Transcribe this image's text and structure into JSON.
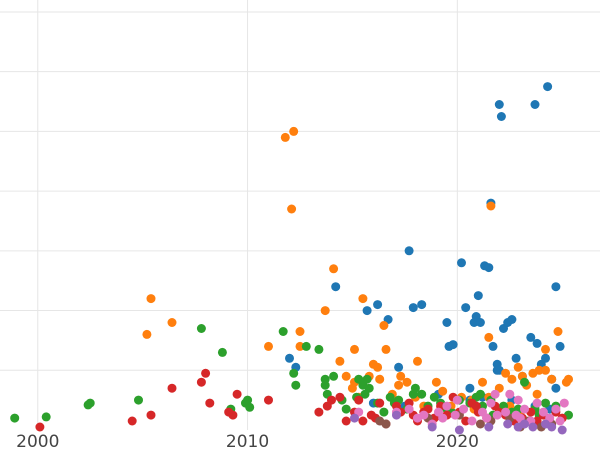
{
  "chart_data": {
    "type": "scatter",
    "title": "",
    "xlabel": "",
    "ylabel": "",
    "xlim": [
      1998.2,
      2026.8
    ],
    "ylim": [
      0,
      7.2
    ],
    "x_ticks": [
      2000,
      2010,
      2020
    ],
    "x_tick_labels": [
      "2000",
      "2010",
      "2020"
    ],
    "y_gridlines": [
      1,
      2,
      3,
      4,
      5,
      6,
      7
    ],
    "grid": true,
    "legend": "none",
    "series": [
      {
        "color": "#1f77b4",
        "points": [
          [
            2014.2,
            2.4
          ],
          [
            2015.7,
            2.0
          ],
          [
            2016.2,
            2.1
          ],
          [
            2016.7,
            1.85
          ],
          [
            2017.2,
            1.05
          ],
          [
            2017.7,
            3.0
          ],
          [
            2017.9,
            2.05
          ],
          [
            2018.3,
            2.1
          ],
          [
            2019.5,
            1.8
          ],
          [
            2019.6,
            1.4
          ],
          [
            2019.8,
            1.43
          ],
          [
            2020.2,
            2.8
          ],
          [
            2020.4,
            2.05
          ],
          [
            2020.6,
            0.7
          ],
          [
            2020.8,
            1.8
          ],
          [
            2020.9,
            1.9
          ],
          [
            2021.0,
            2.25
          ],
          [
            2021.1,
            1.8
          ],
          [
            2021.3,
            2.75
          ],
          [
            2021.5,
            2.72
          ],
          [
            2021.6,
            3.8
          ],
          [
            2021.7,
            1.4
          ],
          [
            2021.9,
            1.1
          ],
          [
            2021.9,
            1.0
          ],
          [
            2022.0,
            1.0
          ],
          [
            2022.0,
            5.45
          ],
          [
            2022.1,
            5.25
          ],
          [
            2022.2,
            1.7
          ],
          [
            2022.4,
            1.8
          ],
          [
            2022.6,
            1.85
          ],
          [
            2022.8,
            1.2
          ],
          [
            2023.1,
            0.9
          ],
          [
            2023.5,
            1.55
          ],
          [
            2023.7,
            5.45
          ],
          [
            2023.8,
            1.45
          ],
          [
            2024.0,
            1.1
          ],
          [
            2024.2,
            1.2
          ],
          [
            2024.3,
            5.75
          ],
          [
            2024.5,
            0.85
          ],
          [
            2024.7,
            0.7
          ],
          [
            2024.7,
            2.4
          ],
          [
            2024.9,
            1.4
          ],
          [
            2012.0,
            1.2
          ],
          [
            2012.3,
            1.05
          ],
          [
            2016.0,
            0.45
          ],
          [
            2017.5,
            0.4
          ],
          [
            2019.1,
            0.6
          ],
          [
            2020.6,
            0.5
          ],
          [
            2021.2,
            0.55
          ],
          [
            2022.6,
            0.5
          ],
          [
            2023.7,
            0.4
          ],
          [
            2024.4,
            0.35
          ]
        ]
      },
      {
        "color": "#ff7f0e",
        "points": [
          [
            2005.2,
            1.6
          ],
          [
            2005.4,
            2.2
          ],
          [
            2006.4,
            1.8
          ],
          [
            2011.0,
            1.4
          ],
          [
            2011.8,
            4.9
          ],
          [
            2012.1,
            3.7
          ],
          [
            2012.2,
            5.0
          ],
          [
            2012.5,
            1.65
          ],
          [
            2012.5,
            1.4
          ],
          [
            2013.7,
            2.0
          ],
          [
            2014.1,
            2.7
          ],
          [
            2014.4,
            1.15
          ],
          [
            2014.7,
            0.9
          ],
          [
            2015.0,
            0.7
          ],
          [
            2015.1,
            0.8
          ],
          [
            2015.1,
            1.35
          ],
          [
            2015.5,
            2.2
          ],
          [
            2015.8,
            0.9
          ],
          [
            2016.0,
            1.1
          ],
          [
            2016.2,
            1.05
          ],
          [
            2016.3,
            0.85
          ],
          [
            2016.5,
            1.75
          ],
          [
            2016.6,
            1.35
          ],
          [
            2017.2,
            0.75
          ],
          [
            2017.3,
            0.9
          ],
          [
            2017.6,
            0.8
          ],
          [
            2018.1,
            1.15
          ],
          [
            2018.4,
            0.4
          ],
          [
            2019.0,
            0.8
          ],
          [
            2019.7,
            0.4
          ],
          [
            2020.2,
            0.55
          ],
          [
            2020.7,
            0.5
          ],
          [
            2021.2,
            0.8
          ],
          [
            2021.5,
            0.55
          ],
          [
            2021.5,
            1.55
          ],
          [
            2021.6,
            3.75
          ],
          [
            2022.0,
            0.7
          ],
          [
            2022.3,
            0.95
          ],
          [
            2022.6,
            0.85
          ],
          [
            2022.9,
            1.05
          ],
          [
            2023.1,
            0.9
          ],
          [
            2023.3,
            0.75
          ],
          [
            2023.6,
            0.95
          ],
          [
            2023.8,
            0.6
          ],
          [
            2023.9,
            1.0
          ],
          [
            2024.2,
            1.0
          ],
          [
            2024.5,
            0.85
          ],
          [
            2024.8,
            1.65
          ],
          [
            2025.2,
            0.8
          ],
          [
            2025.3,
            0.85
          ],
          [
            2024.2,
            1.35
          ],
          [
            2018.0,
            0.55
          ],
          [
            2019.3,
            0.65
          ],
          [
            2020.8,
            0.35
          ],
          [
            2022.5,
            0.4
          ],
          [
            2016.9,
            0.6
          ],
          [
            2015.3,
            0.55
          ],
          [
            2023.0,
            0.3
          ]
        ]
      },
      {
        "color": "#2ca02c",
        "points": [
          [
            1998.9,
            0.2
          ],
          [
            2000.4,
            0.22
          ],
          [
            2002.4,
            0.42
          ],
          [
            2002.5,
            0.45
          ],
          [
            2004.8,
            0.5
          ],
          [
            2007.8,
            1.7
          ],
          [
            2008.8,
            1.3
          ],
          [
            2009.2,
            0.35
          ],
          [
            2009.9,
            0.45
          ],
          [
            2010.0,
            0.5
          ],
          [
            2010.1,
            0.38
          ],
          [
            2011.7,
            1.65
          ],
          [
            2012.2,
            0.95
          ],
          [
            2012.3,
            0.75
          ],
          [
            2012.8,
            1.4
          ],
          [
            2013.4,
            1.35
          ],
          [
            2013.7,
            0.85
          ],
          [
            2013.7,
            0.75
          ],
          [
            2013.8,
            0.6
          ],
          [
            2014.1,
            0.9
          ],
          [
            2014.5,
            0.5
          ],
          [
            2014.7,
            0.35
          ],
          [
            2015.2,
            0.55
          ],
          [
            2015.3,
            0.85
          ],
          [
            2015.5,
            0.75
          ],
          [
            2015.6,
            0.6
          ],
          [
            2015.7,
            0.85
          ],
          [
            2015.8,
            0.7
          ],
          [
            2016.2,
            0.45
          ],
          [
            2016.8,
            0.55
          ],
          [
            2017.0,
            0.45
          ],
          [
            2017.2,
            0.5
          ],
          [
            2017.6,
            0.35
          ],
          [
            2017.9,
            0.6
          ],
          [
            2018.0,
            0.7
          ],
          [
            2018.3,
            0.6
          ],
          [
            2018.6,
            0.4
          ],
          [
            2018.9,
            0.55
          ],
          [
            2019.2,
            0.45
          ],
          [
            2019.5,
            0.35
          ],
          [
            2020.1,
            0.5
          ],
          [
            2020.6,
            0.45
          ],
          [
            2020.9,
            0.55
          ],
          [
            2021.1,
            0.6
          ],
          [
            2021.2,
            0.4
          ],
          [
            2021.6,
            0.5
          ],
          [
            2022.2,
            0.4
          ],
          [
            2022.6,
            0.3
          ],
          [
            2022.9,
            0.35
          ],
          [
            2023.2,
            0.8
          ],
          [
            2023.7,
            0.35
          ],
          [
            2024.2,
            0.45
          ],
          [
            2024.7,
            0.4
          ],
          [
            2025.3,
            0.25
          ],
          [
            2016.5,
            0.3
          ],
          [
            2019.8,
            0.28
          ],
          [
            2021.7,
            0.25
          ],
          [
            2023.9,
            0.25
          ]
        ]
      },
      {
        "color": "#d62728",
        "points": [
          [
            2000.1,
            0.05
          ],
          [
            2004.5,
            0.15
          ],
          [
            2005.4,
            0.25
          ],
          [
            2006.4,
            0.7
          ],
          [
            2007.8,
            0.8
          ],
          [
            2008.0,
            0.95
          ],
          [
            2008.2,
            0.45
          ],
          [
            2009.1,
            0.3
          ],
          [
            2009.3,
            0.25
          ],
          [
            2009.5,
            0.6
          ],
          [
            2011.0,
            0.5
          ],
          [
            2013.4,
            0.3
          ],
          [
            2013.8,
            0.4
          ],
          [
            2014.0,
            0.5
          ],
          [
            2014.4,
            0.55
          ],
          [
            2014.7,
            0.15
          ],
          [
            2015.1,
            0.3
          ],
          [
            2015.3,
            0.5
          ],
          [
            2015.5,
            0.15
          ],
          [
            2015.9,
            0.25
          ],
          [
            2016.1,
            0.2
          ],
          [
            2016.3,
            0.45
          ],
          [
            2016.6,
            0.1
          ],
          [
            2017.1,
            0.4
          ],
          [
            2017.3,
            0.3
          ],
          [
            2017.7,
            0.45
          ],
          [
            2017.9,
            0.25
          ],
          [
            2018.1,
            0.15
          ],
          [
            2018.4,
            0.3
          ],
          [
            2018.9,
            0.2
          ],
          [
            2019.2,
            0.4
          ],
          [
            2019.5,
            0.25
          ],
          [
            2019.8,
            0.55
          ],
          [
            2020.1,
            0.3
          ],
          [
            2020.4,
            0.15
          ],
          [
            2020.7,
            0.45
          ],
          [
            2021.0,
            0.3
          ],
          [
            2021.4,
            0.2
          ],
          [
            2021.8,
            0.4
          ],
          [
            2022.3,
            0.25
          ],
          [
            2022.7,
            0.15
          ],
          [
            2023.1,
            0.2
          ],
          [
            2023.5,
            0.3
          ],
          [
            2023.8,
            0.15
          ],
          [
            2024.1,
            0.25
          ],
          [
            2024.4,
            0.15
          ],
          [
            2024.7,
            0.3
          ],
          [
            2025.0,
            0.2
          ],
          [
            2018.6,
            0.35
          ],
          [
            2020.9,
            0.4
          ],
          [
            2022.0,
            0.3
          ]
        ]
      },
      {
        "color": "#8c564b",
        "points": [
          [
            2016.3,
            0.15
          ],
          [
            2016.6,
            0.1
          ],
          [
            2018.6,
            0.2
          ],
          [
            2020.1,
            0.25
          ],
          [
            2021.6,
            0.15
          ],
          [
            2022.5,
            0.2
          ],
          [
            2023.4,
            0.15
          ],
          [
            2024.0,
            0.05
          ],
          [
            2024.5,
            0.1
          ],
          [
            2021.1,
            0.1
          ],
          [
            2023.0,
            0.05
          ]
        ]
      },
      {
        "color": "#e377c2",
        "points": [
          [
            2015.3,
            0.3
          ],
          [
            2017.7,
            0.35
          ],
          [
            2018.4,
            0.25
          ],
          [
            2018.8,
            0.1
          ],
          [
            2019.1,
            0.3
          ],
          [
            2019.5,
            0.4
          ],
          [
            2019.9,
            0.25
          ],
          [
            2020.3,
            0.35
          ],
          [
            2020.7,
            0.15
          ],
          [
            2021.2,
            0.3
          ],
          [
            2021.6,
            0.45
          ],
          [
            2021.9,
            0.25
          ],
          [
            2022.3,
            0.3
          ],
          [
            2022.5,
            0.6
          ],
          [
            2022.8,
            0.25
          ],
          [
            2022.9,
            0.5
          ],
          [
            2023.2,
            0.35
          ],
          [
            2023.5,
            0.15
          ],
          [
            2023.8,
            0.45
          ],
          [
            2024.1,
            0.3
          ],
          [
            2024.4,
            0.2
          ],
          [
            2024.7,
            0.35
          ],
          [
            2025.1,
            0.45
          ],
          [
            2018.1,
            0.2
          ],
          [
            2020.0,
            0.5
          ],
          [
            2021.4,
            0.2
          ],
          [
            2023.0,
            0.2
          ],
          [
            2024.9,
            0.15
          ],
          [
            2019.3,
            0.2
          ],
          [
            2017.1,
            0.3
          ],
          [
            2021.8,
            0.6
          ]
        ]
      },
      {
        "color": "#9467bd",
        "points": [
          [
            2015.1,
            0.2
          ],
          [
            2017.1,
            0.25
          ],
          [
            2018.8,
            0.05
          ],
          [
            2020.1,
            0.0
          ],
          [
            2021.5,
            0.05
          ],
          [
            2022.4,
            0.1
          ],
          [
            2022.9,
            0.05
          ],
          [
            2023.2,
            0.1
          ],
          [
            2023.6,
            0.05
          ],
          [
            2024.2,
            0.1
          ],
          [
            2024.5,
            0.05
          ],
          [
            2025.0,
            0.0
          ]
        ]
      }
    ]
  }
}
